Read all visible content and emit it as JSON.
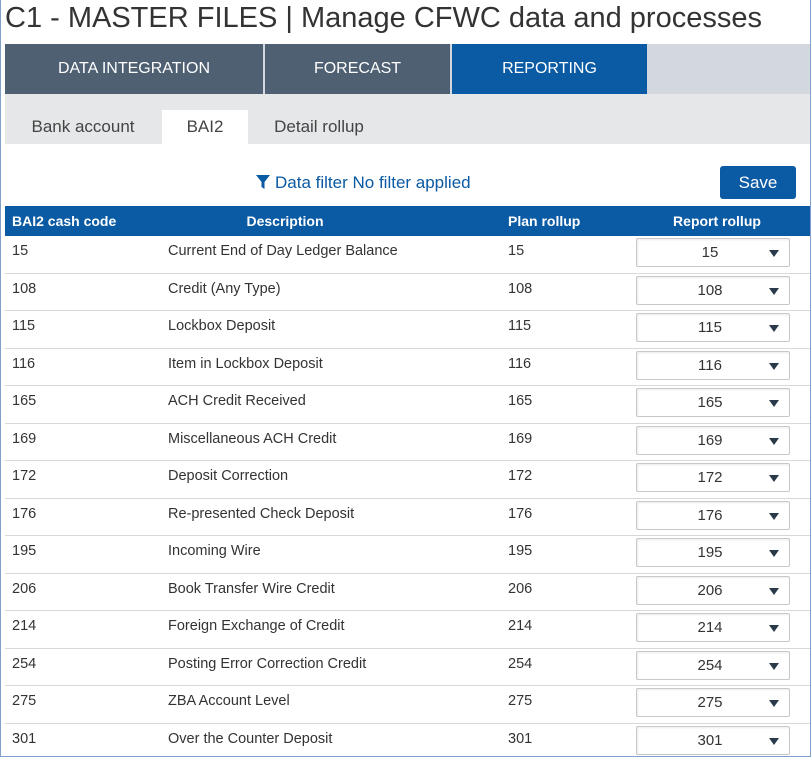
{
  "app_title": "C1 - MASTER FILES | Manage CFWC data and processes",
  "main_tabs": [
    {
      "label": "DATA INTEGRATION"
    },
    {
      "label": "FORECAST"
    },
    {
      "label": "REPORTING",
      "active": true
    }
  ],
  "sub_tabs": [
    {
      "label": "Bank account"
    },
    {
      "label": "BAI2",
      "active": true
    },
    {
      "label": "Detail rollup"
    }
  ],
  "filter": {
    "icon": "funnel-icon",
    "label": "Data filter",
    "status": "No filter applied"
  },
  "save_label": "Save",
  "columns": [
    "BAI2 cash code",
    "Description",
    "Plan rollup",
    "Report rollup"
  ],
  "rows": [
    {
      "code": "15",
      "description": "Current End of Day Ledger Balance",
      "plan": "15",
      "report": "15"
    },
    {
      "code": "108",
      "description": "Credit (Any Type)",
      "plan": "108",
      "report": "108"
    },
    {
      "code": "115",
      "description": "Lockbox Deposit",
      "plan": "115",
      "report": "115"
    },
    {
      "code": "116",
      "description": "Item in Lockbox Deposit",
      "plan": "116",
      "report": "116"
    },
    {
      "code": "165",
      "description": "ACH Credit Received",
      "plan": "165",
      "report": "165"
    },
    {
      "code": "169",
      "description": "Miscellaneous ACH Credit",
      "plan": "169",
      "report": "169"
    },
    {
      "code": "172",
      "description": "Deposit Correction",
      "plan": "172",
      "report": "172"
    },
    {
      "code": "176",
      "description": "Re-presented Check Deposit",
      "plan": "176",
      "report": "176"
    },
    {
      "code": "195",
      "description": "Incoming Wire",
      "plan": "195",
      "report": "195"
    },
    {
      "code": "206",
      "description": "Book Transfer Wire Credit",
      "plan": "206",
      "report": "206"
    },
    {
      "code": "214",
      "description": "Foreign Exchange of Credit",
      "plan": "214",
      "report": "214"
    },
    {
      "code": "254",
      "description": "Posting Error Correction Credit",
      "plan": "254",
      "report": "254"
    },
    {
      "code": "275",
      "description": "ZBA Account Level",
      "plan": "275",
      "report": "275"
    },
    {
      "code": "301",
      "description": "Over the Counter Deposit",
      "plan": "301",
      "report": "301"
    }
  ],
  "colors": {
    "accent": "#0a5aa4",
    "nav_inactive": "#4e6072",
    "subbar": "#e6e7e8"
  }
}
